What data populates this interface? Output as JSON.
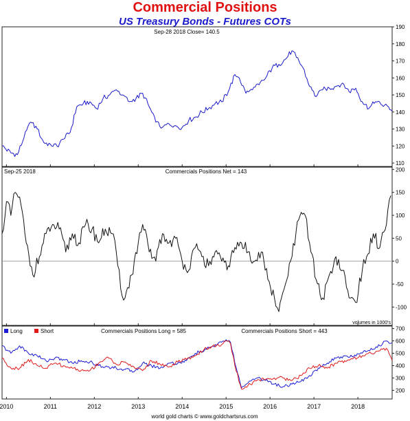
{
  "header": {
    "title": "Commercial Positions",
    "subtitle": "US Treasury Bonds - Futures COTs"
  },
  "footer": {
    "credit": "world gold charts © www.goldchartsrus.com"
  },
  "colors": {
    "price": "#1a1acc",
    "net": "#111111",
    "long": "#1a1ad8",
    "short": "#e01818",
    "title": "#e01010"
  },
  "chart_data": [
    {
      "type": "line",
      "annotation": "Sep-28  2018   Close= 140.5",
      "ylim": [
        108,
        190
      ],
      "y_ticks": [
        110,
        120,
        130,
        140,
        150,
        160,
        170,
        180,
        190
      ],
      "x_labels": [
        "2010",
        "2011",
        "2012",
        "2013",
        "2014",
        "2015",
        "2016",
        "2017",
        "2018"
      ],
      "x_range": [
        2009.9,
        2018.78
      ],
      "series": [
        {
          "x": [
            2009.9,
            2010.1,
            2010.25,
            2010.4,
            2010.55,
            2010.7,
            2010.85,
            2011.0,
            2011.15,
            2011.3,
            2011.45,
            2011.6,
            2011.75,
            2011.9,
            2012.05,
            2012.2,
            2012.35,
            2012.5,
            2012.65,
            2012.8,
            2012.95,
            2013.1,
            2013.25,
            2013.4,
            2013.55,
            2013.7,
            2013.85,
            2014.0,
            2014.15,
            2014.3,
            2014.45,
            2014.6,
            2014.75,
            2014.9,
            2015.05,
            2015.2,
            2015.3,
            2015.45,
            2015.6,
            2015.75,
            2015.9,
            2016.05,
            2016.2,
            2016.35,
            2016.5,
            2016.6,
            2016.75,
            2016.9,
            2017.05,
            2017.2,
            2017.35,
            2017.5,
            2017.65,
            2017.8,
            2017.95,
            2018.1,
            2018.25,
            2018.4,
            2018.55,
            2018.7,
            2018.78
          ],
          "values": [
            120,
            116,
            115,
            125,
            134,
            130,
            122,
            121,
            120,
            124,
            128,
            143,
            145,
            146,
            142,
            148,
            150,
            153,
            150,
            146,
            148,
            151,
            143,
            134,
            131,
            133,
            132,
            131,
            135,
            137,
            140,
            142,
            145,
            146,
            152,
            162,
            160,
            151,
            153,
            156,
            160,
            166,
            168,
            171,
            176,
            172,
            166,
            155,
            149,
            153,
            154,
            155,
            157,
            152,
            154,
            146,
            142,
            146,
            144,
            143,
            140.5
          ]
        }
      ]
    },
    {
      "type": "line",
      "annotation_left": "Sep-25  2018",
      "annotation_center": "Commercials Positions Net = 143",
      "note": "volumes in 1000's",
      "ylim": [
        -140,
        205
      ],
      "y_ticks": [
        -100,
        -50,
        0,
        50,
        100,
        150,
        200
      ],
      "x_range": [
        2009.9,
        2018.78
      ],
      "series": [
        {
          "x": [
            2009.9,
            2010.0,
            2010.1,
            2010.2,
            2010.3,
            2010.45,
            2010.6,
            2010.75,
            2010.9,
            2011.05,
            2011.2,
            2011.35,
            2011.5,
            2011.65,
            2011.8,
            2011.95,
            2012.1,
            2012.25,
            2012.4,
            2012.5,
            2012.6,
            2012.7,
            2012.85,
            2013.0,
            2013.1,
            2013.25,
            2013.4,
            2013.55,
            2013.7,
            2013.85,
            2014.0,
            2014.15,
            2014.3,
            2014.45,
            2014.6,
            2014.75,
            2014.9,
            2015.05,
            2015.2,
            2015.35,
            2015.5,
            2015.65,
            2015.8,
            2015.95,
            2016.1,
            2016.2,
            2016.35,
            2016.5,
            2016.65,
            2016.8,
            2016.9,
            2017.05,
            2017.2,
            2017.35,
            2017.5,
            2017.65,
            2017.8,
            2017.95,
            2018.1,
            2018.2,
            2018.35,
            2018.5,
            2018.65,
            2018.75
          ],
          "values": [
            60,
            130,
            100,
            150,
            140,
            40,
            -30,
            10,
            60,
            80,
            70,
            20,
            60,
            40,
            80,
            70,
            40,
            70,
            60,
            20,
            -60,
            -80,
            -30,
            40,
            80,
            20,
            0,
            60,
            40,
            50,
            0,
            -20,
            30,
            10,
            -10,
            20,
            0,
            -10,
            30,
            40,
            20,
            0,
            20,
            -40,
            -80,
            -110,
            -50,
            10,
            90,
            100,
            40,
            -40,
            -80,
            -30,
            10,
            -20,
            -80,
            -90,
            -20,
            10,
            60,
            30,
            80,
            143
          ]
        }
      ]
    },
    {
      "type": "line",
      "legend": [
        "Long",
        "Short"
      ],
      "annotation_long": "Commercials Positions Long = 585",
      "annotation_short": "Commercials Positions Short = 443",
      "ylim": [
        130,
        720
      ],
      "y_ticks": [
        200,
        300,
        400,
        500,
        600,
        700
      ],
      "x_range": [
        2009.9,
        2018.78
      ],
      "series": [
        {
          "name": "Long",
          "x": [
            2009.9,
            2010.1,
            2010.3,
            2010.5,
            2010.7,
            2010.9,
            2011.1,
            2011.3,
            2011.5,
            2011.7,
            2011.9,
            2012.1,
            2012.3,
            2012.5,
            2012.7,
            2012.9,
            2013.1,
            2013.3,
            2013.5,
            2013.7,
            2013.9,
            2014.1,
            2014.3,
            2014.5,
            2014.7,
            2014.9,
            2015.0,
            2015.1,
            2015.2,
            2015.35,
            2015.5,
            2015.7,
            2015.9,
            2016.1,
            2016.3,
            2016.5,
            2016.7,
            2016.9,
            2017.1,
            2017.3,
            2017.5,
            2017.7,
            2017.9,
            2018.1,
            2018.3,
            2018.5,
            2018.65,
            2018.78
          ],
          "values": [
            560,
            500,
            560,
            500,
            480,
            440,
            460,
            450,
            420,
            440,
            430,
            400,
            390,
            380,
            370,
            350,
            420,
            400,
            380,
            420,
            420,
            440,
            500,
            520,
            560,
            590,
            610,
            590,
            420,
            220,
            260,
            300,
            280,
            250,
            230,
            250,
            270,
            320,
            380,
            420,
            460,
            480,
            470,
            500,
            540,
            560,
            600,
            585
          ]
        },
        {
          "name": "Short",
          "x": [
            2009.9,
            2010.1,
            2010.3,
            2010.5,
            2010.7,
            2010.9,
            2011.1,
            2011.3,
            2011.5,
            2011.7,
            2011.9,
            2012.1,
            2012.3,
            2012.5,
            2012.7,
            2012.9,
            2013.1,
            2013.3,
            2013.5,
            2013.7,
            2013.9,
            2014.1,
            2014.3,
            2014.5,
            2014.7,
            2014.9,
            2015.0,
            2015.1,
            2015.2,
            2015.35,
            2015.5,
            2015.7,
            2015.9,
            2016.1,
            2016.3,
            2016.5,
            2016.7,
            2016.9,
            2017.1,
            2017.3,
            2017.5,
            2017.7,
            2017.9,
            2018.1,
            2018.3,
            2018.5,
            2018.65,
            2018.78
          ],
          "values": [
            460,
            380,
            380,
            450,
            400,
            380,
            420,
            400,
            380,
            360,
            360,
            420,
            470,
            410,
            430,
            390,
            360,
            440,
            410,
            390,
            430,
            450,
            480,
            530,
            560,
            570,
            600,
            580,
            400,
            210,
            240,
            280,
            290,
            300,
            300,
            280,
            320,
            380,
            400,
            380,
            420,
            440,
            460,
            480,
            500,
            520,
            540,
            443
          ]
        }
      ]
    }
  ]
}
